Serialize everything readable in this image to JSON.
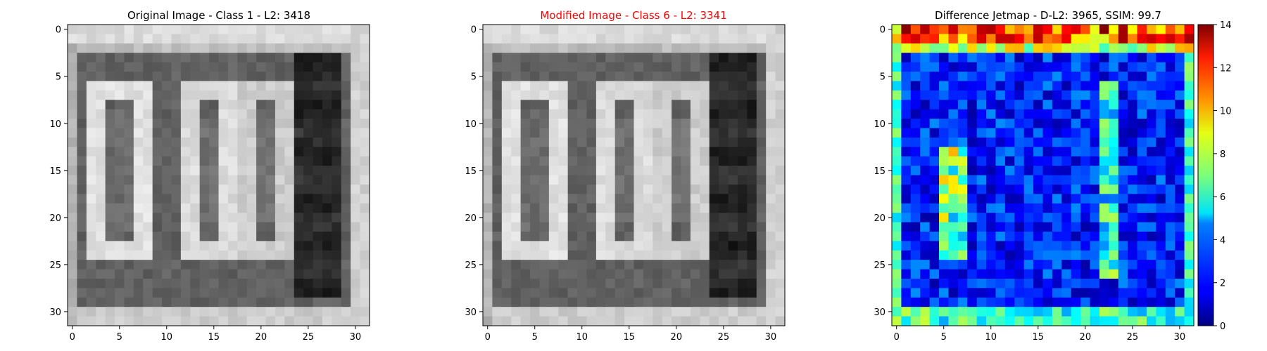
{
  "chart_data": [
    {
      "type": "heatmap",
      "title": "Original Image - Class 1 - L2: 3418",
      "title_color": "#000000",
      "colormap": "gray",
      "grid": false,
      "xlim": [
        -0.5,
        31.5
      ],
      "ylim": [
        31.5,
        -0.5
      ],
      "xticks": [
        0,
        5,
        10,
        15,
        20,
        25,
        30
      ],
      "yticks": [
        0,
        5,
        10,
        15,
        20,
        25,
        30
      ],
      "xtick_labels": [
        "0",
        "5",
        "10",
        "15",
        "20",
        "25",
        "30"
      ],
      "ytick_labels": [
        "0",
        "5",
        "10",
        "15",
        "20",
        "25",
        "30"
      ]
    },
    {
      "type": "heatmap",
      "title": "Modified Image - Class 6 - L2: 3341",
      "title_color": "#ff0000",
      "colormap": "gray",
      "grid": false,
      "xlim": [
        -0.5,
        31.5
      ],
      "ylim": [
        31.5,
        -0.5
      ],
      "xticks": [
        0,
        5,
        10,
        15,
        20,
        25,
        30
      ],
      "yticks": [
        0,
        5,
        10,
        15,
        20,
        25,
        30
      ],
      "xtick_labels": [
        "0",
        "5",
        "10",
        "15",
        "20",
        "25",
        "30"
      ],
      "ytick_labels": [
        "0",
        "5",
        "10",
        "15",
        "20",
        "25",
        "30"
      ]
    },
    {
      "type": "heatmap",
      "title": "Difference Jetmap - D-L2: 3965, SSIM: 99.7",
      "title_color": "#000000",
      "colormap": "jet",
      "grid": false,
      "xlim": [
        -0.5,
        31.5
      ],
      "ylim": [
        31.5,
        -0.5
      ],
      "xticks": [
        0,
        5,
        10,
        15,
        20,
        25,
        30
      ],
      "yticks": [
        0,
        5,
        10,
        15,
        20,
        25,
        30
      ],
      "xtick_labels": [
        "0",
        "5",
        "10",
        "15",
        "20",
        "25",
        "30"
      ],
      "ytick_labels": [
        "0",
        "5",
        "10",
        "15",
        "20",
        "25",
        "30"
      ],
      "colorbar": {
        "range": [
          0,
          14
        ],
        "ticks": [
          0,
          2,
          4,
          6,
          8,
          10,
          12,
          14
        ],
        "tick_labels": [
          "0",
          "2",
          "4",
          "6",
          "8",
          "10",
          "12",
          "14"
        ]
      }
    }
  ]
}
